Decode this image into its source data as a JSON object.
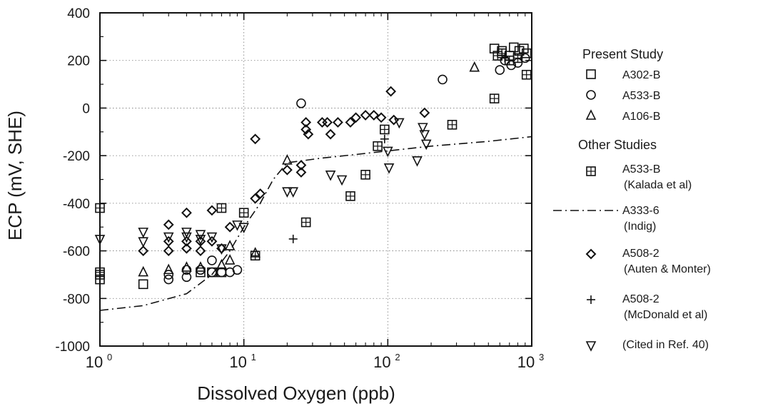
{
  "chart_data": {
    "type": "scatter",
    "title": "",
    "xlabel": "Dissolved Oxygen (ppb)",
    "ylabel": "ECP (mV, SHE)",
    "xscale": "log",
    "xlim": [
      1,
      1000
    ],
    "ylim": [
      -1000,
      400
    ],
    "x_ticks": [
      {
        "base": "10",
        "exp": "0"
      },
      {
        "base": "10",
        "exp": "1"
      },
      {
        "base": "10",
        "exp": "2"
      },
      {
        "base": "10",
        "exp": "3"
      }
    ],
    "y_ticks": [
      "-1000",
      "-800",
      "-600",
      "-400",
      "-200",
      "0",
      "200",
      "400"
    ],
    "y_tick_values": [
      -1000,
      -800,
      -600,
      -400,
      -200,
      0,
      200,
      400
    ],
    "grid": "dotted, at decades and every 200 mV",
    "legend_position": "right, outside plot",
    "legend_headers": [
      "Present Study",
      "Other Studies"
    ],
    "series": [
      {
        "name": "A302-B",
        "marker": "square",
        "points": [
          [
            1,
            -700
          ],
          [
            1,
            -720
          ],
          [
            2,
            -740
          ],
          [
            5,
            -690
          ],
          [
            6,
            -690
          ],
          [
            7,
            -690
          ],
          [
            550,
            250
          ],
          [
            620,
            240
          ],
          [
            700,
            220
          ],
          [
            750,
            255
          ],
          [
            820,
            240
          ],
          [
            880,
            250
          ],
          [
            920,
            230
          ]
        ]
      },
      {
        "name": "A533-B",
        "marker": "circle",
        "points": [
          [
            3,
            -700
          ],
          [
            3,
            -720
          ],
          [
            4,
            -710
          ],
          [
            4,
            -680
          ],
          [
            5,
            -680
          ],
          [
            6,
            -640
          ],
          [
            6,
            -690
          ],
          [
            7,
            -690
          ],
          [
            8,
            -690
          ],
          [
            9,
            -680
          ],
          [
            25,
            20
          ],
          [
            240,
            120
          ],
          [
            600,
            160
          ],
          [
            650,
            200
          ],
          [
            720,
            180
          ],
          [
            800,
            190
          ],
          [
            900,
            210
          ]
        ]
      },
      {
        "name": "A106-B",
        "marker": "triangle",
        "points": [
          [
            2,
            -690
          ],
          [
            3,
            -680
          ],
          [
            4,
            -670
          ],
          [
            5,
            -670
          ],
          [
            7,
            -660
          ],
          [
            8,
            -580
          ],
          [
            8,
            -640
          ],
          [
            12,
            -610
          ],
          [
            20,
            -220
          ],
          [
            400,
            170
          ]
        ]
      },
      {
        "name": "A533-B (Kalada et al)",
        "marker": "boxplus",
        "points": [
          [
            1,
            -420
          ],
          [
            1,
            -690
          ],
          [
            7,
            -420
          ],
          [
            10,
            -440
          ],
          [
            12,
            -620
          ],
          [
            27,
            -480
          ],
          [
            55,
            -370
          ],
          [
            70,
            -280
          ],
          [
            85,
            -160
          ],
          [
            95,
            -90
          ],
          [
            280,
            -70
          ],
          [
            550,
            40
          ],
          [
            580,
            220
          ],
          [
            620,
            230
          ],
          [
            700,
            200
          ],
          [
            800,
            210
          ],
          [
            920,
            140
          ]
        ]
      },
      {
        "name": "A333-6 (Indig)",
        "marker": "dash-dot line",
        "points": [
          [
            1,
            -850
          ],
          [
            2,
            -830
          ],
          [
            4,
            -780
          ],
          [
            6,
            -700
          ],
          [
            8,
            -600
          ],
          [
            10,
            -500
          ],
          [
            13,
            -400
          ],
          [
            16,
            -300
          ],
          [
            20,
            -230
          ],
          [
            35,
            -210
          ],
          [
            60,
            -195
          ],
          [
            100,
            -180
          ],
          [
            200,
            -160
          ],
          [
            500,
            -140
          ],
          [
            1000,
            -120
          ]
        ]
      },
      {
        "name": "A508-2 (Auten & Monter)",
        "marker": "diamond",
        "points": [
          [
            2,
            -600
          ],
          [
            3,
            -490
          ],
          [
            3,
            -560
          ],
          [
            3,
            -600
          ],
          [
            4,
            -440
          ],
          [
            4,
            -560
          ],
          [
            4,
            -590
          ],
          [
            5,
            -560
          ],
          [
            5,
            -600
          ],
          [
            6,
            -430
          ],
          [
            6,
            -560
          ],
          [
            7,
            -590
          ],
          [
            8,
            -500
          ],
          [
            12,
            -130
          ],
          [
            12,
            -380
          ],
          [
            13,
            -360
          ],
          [
            20,
            -260
          ],
          [
            25,
            -240
          ],
          [
            25,
            -270
          ],
          [
            27,
            -60
          ],
          [
            27,
            -90
          ],
          [
            28,
            -110
          ],
          [
            35,
            -60
          ],
          [
            38,
            -60
          ],
          [
            40,
            -110
          ],
          [
            45,
            -60
          ],
          [
            55,
            -60
          ],
          [
            60,
            -40
          ],
          [
            70,
            -30
          ],
          [
            80,
            -30
          ],
          [
            90,
            -40
          ],
          [
            105,
            70
          ],
          [
            110,
            -50
          ],
          [
            180,
            -20
          ]
        ]
      },
      {
        "name": "A508-2 (McDonald et al)",
        "marker": "plus",
        "points": [
          [
            22,
            -550
          ],
          [
            95,
            -130
          ],
          [
            650,
            210
          ]
        ]
      },
      {
        "name": "(Cited in Ref. 40)",
        "marker": "down-triangle",
        "points": [
          [
            1,
            -550
          ],
          [
            2,
            -520
          ],
          [
            2,
            -560
          ],
          [
            3,
            -540
          ],
          [
            4,
            -520
          ],
          [
            4,
            -540
          ],
          [
            5,
            -530
          ],
          [
            5,
            -550
          ],
          [
            6,
            -540
          ],
          [
            7,
            -590
          ],
          [
            9,
            -490
          ],
          [
            10,
            -500
          ],
          [
            20,
            -350
          ],
          [
            22,
            -350
          ],
          [
            40,
            -280
          ],
          [
            48,
            -300
          ],
          [
            100,
            -180
          ],
          [
            102,
            -250
          ],
          [
            120,
            -60
          ],
          [
            160,
            -220
          ],
          [
            175,
            -80
          ],
          [
            180,
            -110
          ],
          [
            185,
            -150
          ]
        ]
      }
    ]
  }
}
